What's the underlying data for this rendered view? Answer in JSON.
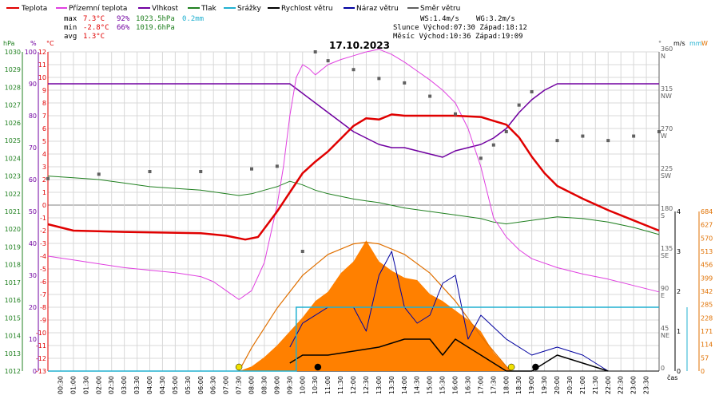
{
  "legend": [
    {
      "label": "Teplota",
      "color": "#e00000"
    },
    {
      "label": "Přízemní teplota",
      "color": "#e040e0"
    },
    {
      "label": "Vlhkost",
      "color": "#7000a0"
    },
    {
      "label": "Tlak",
      "color": "#208020"
    },
    {
      "label": "Srážky",
      "color": "#20b0d0"
    },
    {
      "label": "Rychlost větru",
      "color": "#000000"
    },
    {
      "label": "Náraz větru",
      "color": "#0000a0"
    },
    {
      "label": "Směr větru",
      "color": "#606060"
    }
  ],
  "stats": {
    "max_label": "max",
    "max_temp": "7.3°C",
    "max_hum": "92%",
    "max_pres": "1023.5hPa",
    "max_rain": "0.2mm",
    "min_label": "min",
    "min_temp": "-2.8°C",
    "min_hum": "66%",
    "min_pres": "1019.6hPa",
    "avg_label": "avg",
    "avg_temp": "1.3°C"
  },
  "info": {
    "ws": "WS:1.4m/s",
    "wg": "WG:3.2m/s",
    "slunce": "Slunce Východ:07:30  Západ:18:12",
    "mesic": "Měsíc  Východ:10:36  Západ:19:09"
  },
  "title": "17.10.2023",
  "axis_units": {
    "hpa": "hPa",
    "pct": "%",
    "c": "°C",
    "deg": "°",
    "ms": "m/s",
    "mm": "mm",
    "w": "W"
  },
  "xlabel": "čas",
  "colors": {
    "pressure": "#208020",
    "humidity": "#7000a0",
    "temp": "#e00000",
    "ground": "#e040e0",
    "rain": "#20b0d0",
    "wind": "#000000",
    "gust": "#0000a0",
    "dir": "#606060",
    "solar": "#ff8000",
    "solar_curve": "#e07000",
    "grid": "#d8d8d8"
  },
  "chart_data": {
    "type": "line",
    "title": "17.10.2023",
    "time_range": [
      "00:00",
      "24:00"
    ],
    "x_ticks": [
      "00:30",
      "01:00",
      "01:30",
      "02:00",
      "02:30",
      "03:00",
      "03:30",
      "04:00",
      "04:30",
      "05:00",
      "05:30",
      "06:00",
      "06:30",
      "07:00",
      "07:30",
      "08:00",
      "08:30",
      "09:00",
      "09:30",
      "10:00",
      "10:30",
      "11:00",
      "11:30",
      "12:00",
      "12:30",
      "13:00",
      "13:30",
      "14:00",
      "14:30",
      "15:00",
      "15:30",
      "16:00",
      "16:30",
      "17:00",
      "17:30",
      "18:00",
      "18:30",
      "19:00",
      "19:30",
      "20:00",
      "20:30",
      "21:00",
      "21:30",
      "22:00",
      "22:30",
      "23:00",
      "23:30"
    ],
    "axes": {
      "pressure_hpa": {
        "range": [
          1012,
          1030
        ],
        "ticks": [
          1012,
          1013,
          1014,
          1015,
          1016,
          1017,
          1018,
          1019,
          1020,
          1021,
          1022,
          1023,
          1024,
          1025,
          1026,
          1027,
          1028,
          1029,
          1030
        ]
      },
      "humidity_pct": {
        "range": [
          0,
          100
        ],
        "ticks": [
          0,
          10,
          20,
          30,
          40,
          50,
          60,
          70,
          80,
          90,
          100
        ]
      },
      "temperature_c": {
        "range": [
          -13,
          12
        ],
        "ticks": [
          12,
          11,
          10,
          9,
          8,
          7,
          6,
          5,
          4,
          3,
          2,
          1,
          0,
          -1,
          -2,
          -3,
          -4,
          -5,
          -6,
          -7,
          -8,
          -9,
          -10,
          -11,
          -12,
          -13
        ]
      },
      "wind_dir_deg": {
        "ticks": [
          {
            "v": "360",
            "d": "N"
          },
          {
            "v": "315",
            "d": "NW"
          },
          {
            "v": "270",
            "d": "W"
          },
          {
            "v": "225",
            "d": "SW"
          },
          {
            "v": "180",
            "d": "S"
          },
          {
            "v": "135",
            "d": "SE"
          },
          {
            "v": "90",
            "d": "E"
          },
          {
            "v": "45",
            "d": "NE"
          },
          {
            "v": "0",
            "d": ""
          }
        ]
      },
      "wind_speed_ms": {
        "range": [
          0,
          4
        ],
        "ticks": [
          0,
          1,
          2,
          3,
          4
        ]
      },
      "solar_w": {
        "range": [
          0,
          684
        ],
        "ticks": [
          0,
          57,
          114,
          171,
          228,
          285,
          342,
          399,
          456,
          513,
          570,
          627,
          684
        ]
      }
    },
    "series": [
      {
        "name": "Teplota",
        "unit": "°C",
        "points": [
          [
            0,
            -1.5
          ],
          [
            1,
            -2.0
          ],
          [
            3,
            -2.1
          ],
          [
            6,
            -2.2
          ],
          [
            7,
            -2.4
          ],
          [
            7.75,
            -2.7
          ],
          [
            8.25,
            -2.5
          ],
          [
            9,
            -0.5
          ],
          [
            9.5,
            1.0
          ],
          [
            10,
            2.5
          ],
          [
            10.5,
            3.4
          ],
          [
            11,
            4.2
          ],
          [
            11.5,
            5.2
          ],
          [
            12,
            6.2
          ],
          [
            12.5,
            6.8
          ],
          [
            13,
            6.7
          ],
          [
            13.5,
            7.1
          ],
          [
            14,
            7.0
          ],
          [
            15,
            7.0
          ],
          [
            16,
            7.0
          ],
          [
            17,
            6.9
          ],
          [
            17.5,
            6.6
          ],
          [
            18,
            6.3
          ],
          [
            18.5,
            5.3
          ],
          [
            19,
            3.8
          ],
          [
            19.5,
            2.5
          ],
          [
            20,
            1.5
          ],
          [
            21,
            0.5
          ],
          [
            22,
            -0.4
          ],
          [
            23,
            -1.2
          ],
          [
            24,
            -2.0
          ]
        ]
      },
      {
        "name": "Přízemní teplota",
        "unit": "°C",
        "points": [
          [
            0,
            -4.0
          ],
          [
            1,
            -4.3
          ],
          [
            2,
            -4.6
          ],
          [
            3,
            -4.9
          ],
          [
            4,
            -5.1
          ],
          [
            5,
            -5.3
          ],
          [
            6,
            -5.6
          ],
          [
            6.5,
            -6.0
          ],
          [
            7,
            -6.7
          ],
          [
            7.5,
            -7.4
          ],
          [
            8,
            -6.7
          ],
          [
            8.5,
            -4.5
          ],
          [
            9,
            0.0
          ],
          [
            9.25,
            3.0
          ],
          [
            9.5,
            7.0
          ],
          [
            9.75,
            10.0
          ],
          [
            10,
            11.0
          ],
          [
            10.25,
            10.7
          ],
          [
            10.5,
            10.2
          ],
          [
            11,
            11.0
          ],
          [
            11.5,
            11.4
          ],
          [
            12,
            11.7
          ],
          [
            12.5,
            12.0
          ],
          [
            13,
            12.2
          ],
          [
            13.5,
            11.8
          ],
          [
            14,
            11.2
          ],
          [
            14.5,
            10.5
          ],
          [
            15,
            9.8
          ],
          [
            15.5,
            9.0
          ],
          [
            16,
            8.0
          ],
          [
            16.5,
            6.0
          ],
          [
            17,
            3.0
          ],
          [
            17.5,
            -1.0
          ],
          [
            18,
            -2.5
          ],
          [
            18.5,
            -3.5
          ],
          [
            19,
            -4.2
          ],
          [
            20,
            -4.9
          ],
          [
            21,
            -5.4
          ],
          [
            22,
            -5.8
          ],
          [
            23,
            -6.3
          ],
          [
            24,
            -6.8
          ]
        ]
      },
      {
        "name": "Vlhkost",
        "unit": "%",
        "points": [
          [
            0,
            90
          ],
          [
            3,
            90
          ],
          [
            6,
            90
          ],
          [
            9.5,
            90
          ],
          [
            10,
            87
          ],
          [
            10.5,
            84
          ],
          [
            11,
            81
          ],
          [
            11.5,
            78
          ],
          [
            12,
            75
          ],
          [
            12.5,
            73
          ],
          [
            13,
            71
          ],
          [
            13.5,
            70
          ],
          [
            14,
            70
          ],
          [
            14.5,
            69
          ],
          [
            15,
            68
          ],
          [
            15.5,
            67
          ],
          [
            16,
            69
          ],
          [
            16.5,
            70
          ],
          [
            17,
            71
          ],
          [
            17.5,
            73
          ],
          [
            18,
            76
          ],
          [
            18.5,
            81
          ],
          [
            19,
            85
          ],
          [
            19.5,
            88
          ],
          [
            20,
            90
          ],
          [
            21,
            90
          ],
          [
            24,
            90
          ]
        ]
      },
      {
        "name": "Tlak",
        "unit": "hPa",
        "points": [
          [
            0,
            1023.0
          ],
          [
            1,
            1022.9
          ],
          [
            2,
            1022.8
          ],
          [
            3,
            1022.6
          ],
          [
            4,
            1022.4
          ],
          [
            5,
            1022.3
          ],
          [
            6,
            1022.2
          ],
          [
            7,
            1022.0
          ],
          [
            7.5,
            1021.9
          ],
          [
            8,
            1022.0
          ],
          [
            8.5,
            1022.2
          ],
          [
            9,
            1022.4
          ],
          [
            9.5,
            1022.7
          ],
          [
            10,
            1022.5
          ],
          [
            10.5,
            1022.2
          ],
          [
            11,
            1022.0
          ],
          [
            12,
            1021.7
          ],
          [
            12.5,
            1021.6
          ],
          [
            13,
            1021.5
          ],
          [
            14,
            1021.2
          ],
          [
            15,
            1021.0
          ],
          [
            16,
            1020.8
          ],
          [
            17,
            1020.6
          ],
          [
            17.5,
            1020.4
          ],
          [
            18,
            1020.3
          ],
          [
            19,
            1020.5
          ],
          [
            20,
            1020.7
          ],
          [
            21,
            1020.6
          ],
          [
            22,
            1020.4
          ],
          [
            23,
            1020.1
          ],
          [
            24,
            1019.7
          ]
        ]
      },
      {
        "name": "Srážky",
        "unit": "mm",
        "points": [
          [
            0,
            0
          ],
          [
            9.75,
            0
          ],
          [
            9.75,
            0.2
          ],
          [
            24,
            0.2
          ]
        ]
      },
      {
        "name": "Rychlost větru",
        "unit": "m/s",
        "points": [
          [
            9.5,
            0.2
          ],
          [
            10,
            0.4
          ],
          [
            11,
            0.4
          ],
          [
            12,
            0.5
          ],
          [
            13,
            0.6
          ],
          [
            14,
            0.8
          ],
          [
            15,
            0.8
          ],
          [
            15.5,
            0.4
          ],
          [
            16,
            0.8
          ],
          [
            16.5,
            0.6
          ],
          [
            17,
            0.4
          ],
          [
            18,
            0
          ],
          [
            19,
            0
          ],
          [
            20,
            0.4
          ],
          [
            21,
            0.2
          ],
          [
            22,
            0
          ]
        ]
      },
      {
        "name": "Náraz větru",
        "unit": "m/s",
        "points": [
          [
            9.5,
            0.6
          ],
          [
            10,
            1.2
          ],
          [
            11,
            1.6
          ],
          [
            12,
            1.6
          ],
          [
            12.5,
            1.0
          ],
          [
            13,
            2.4
          ],
          [
            13.5,
            3.0
          ],
          [
            14,
            1.6
          ],
          [
            14.5,
            1.2
          ],
          [
            15,
            1.4
          ],
          [
            15.5,
            2.2
          ],
          [
            16,
            2.4
          ],
          [
            16.5,
            0.8
          ],
          [
            17,
            1.4
          ],
          [
            18,
            0.8
          ],
          [
            19,
            0.4
          ],
          [
            20,
            0.6
          ],
          [
            21,
            0.4
          ],
          [
            22,
            0
          ]
        ]
      },
      {
        "name": "Směr větru",
        "unit": "°",
        "points": [
          [
            0,
            217
          ],
          [
            2,
            222
          ],
          [
            4,
            225
          ],
          [
            6,
            225
          ],
          [
            8,
            228
          ],
          [
            9,
            231
          ],
          [
            10,
            135
          ],
          [
            10.5,
            360
          ],
          [
            11,
            350
          ],
          [
            12,
            340
          ],
          [
            13,
            330
          ],
          [
            14,
            325
          ],
          [
            15,
            310
          ],
          [
            16,
            290
          ],
          [
            17,
            240
          ],
          [
            17.5,
            255
          ],
          [
            18,
            270
          ],
          [
            18.5,
            300
          ],
          [
            19,
            315
          ],
          [
            20,
            260
          ],
          [
            21,
            265
          ],
          [
            22,
            260
          ],
          [
            23,
            265
          ],
          [
            24,
            270
          ]
        ]
      },
      {
        "name": "Solar",
        "unit": "W",
        "points": [
          [
            7.5,
            0
          ],
          [
            8,
            20
          ],
          [
            8.5,
            60
          ],
          [
            9,
            110
          ],
          [
            9.5,
            170
          ],
          [
            10,
            230
          ],
          [
            10.5,
            300
          ],
          [
            11,
            340
          ],
          [
            11.5,
            420
          ],
          [
            12,
            470
          ],
          [
            12.5,
            560
          ],
          [
            13,
            470
          ],
          [
            13.5,
            430
          ],
          [
            14,
            400
          ],
          [
            14.5,
            390
          ],
          [
            15,
            330
          ],
          [
            15.5,
            300
          ],
          [
            16,
            260
          ],
          [
            16.5,
            220
          ],
          [
            17,
            170
          ],
          [
            17.5,
            80
          ],
          [
            18,
            20
          ],
          [
            18.2,
            0
          ]
        ]
      },
      {
        "name": "Theoretical solar",
        "unit": "W",
        "points": [
          [
            7.5,
            0
          ],
          [
            8,
            100
          ],
          [
            9,
            270
          ],
          [
            10,
            410
          ],
          [
            11,
            500
          ],
          [
            12,
            545
          ],
          [
            12.5,
            552
          ],
          [
            13,
            545
          ],
          [
            14,
            500
          ],
          [
            15,
            420
          ],
          [
            16,
            300
          ],
          [
            17,
            150
          ],
          [
            18,
            20
          ],
          [
            18.2,
            0
          ]
        ]
      }
    ],
    "markers": [
      {
        "name": "Slunce východ",
        "time": "07:30"
      },
      {
        "name": "Slunce západ",
        "time": "18:12"
      },
      {
        "name": "Měsíc východ",
        "time": "10:36"
      },
      {
        "name": "Měsíc západ",
        "time": "19:09"
      }
    ]
  }
}
